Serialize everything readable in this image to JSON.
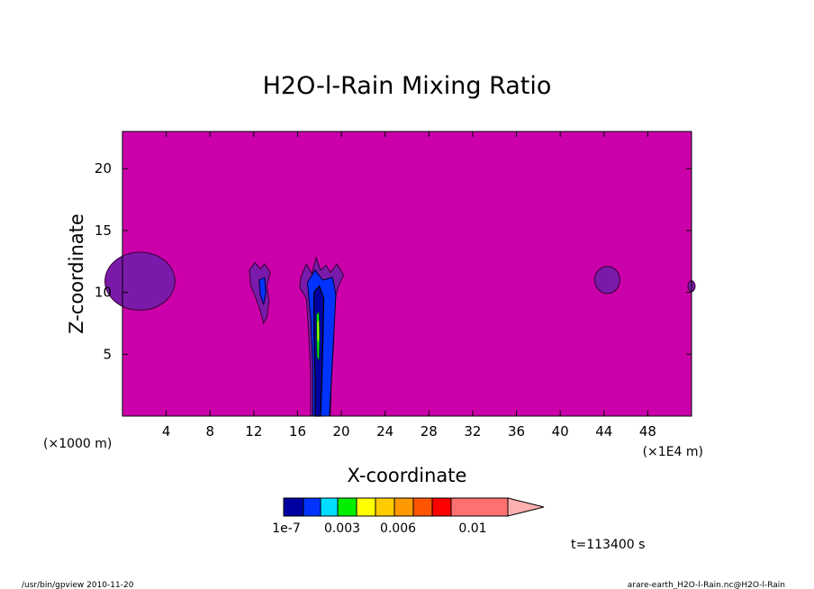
{
  "chart_data": {
    "type": "heatmap",
    "title": "H2O-l-Rain Mixing Ratio",
    "xlabel": "X-coordinate",
    "ylabel": "Z-coordinate",
    "x_unit_label": "(×1000 m)",
    "x_scale_label": "(×1E4 m)",
    "xlim": [
      0,
      52
    ],
    "ylim": [
      0,
      23
    ],
    "xticks": [
      4,
      8,
      12,
      16,
      20,
      24,
      28,
      32,
      36,
      40,
      44,
      48
    ],
    "yticks": [
      5,
      10,
      15,
      20
    ],
    "background_level_color": "#cc00aa",
    "colorbar": {
      "colors": [
        "#0000a0",
        "#0033ff",
        "#00ddff",
        "#00ee00",
        "#ffff00",
        "#ffcc00",
        "#ff9900",
        "#ff5500",
        "#ff0000",
        "#ff7070",
        "#ffb0b0"
      ],
      "tick_labels": [
        "1e-7",
        "0.003",
        "0.006",
        "0.01"
      ]
    },
    "features": [
      {
        "name": "left-edge-patch",
        "x_center": 1.6,
        "z_center": 10.9,
        "level": "lowest"
      },
      {
        "name": "cell-x13",
        "x_center": 12.9,
        "z_center": 10.0,
        "level": "low"
      },
      {
        "name": "main-column-x18",
        "x_center": 18.2,
        "z_center": 6.0,
        "level": "low-to-mid"
      },
      {
        "name": "right-patch",
        "x_center": 44.3,
        "z_center": 11.0,
        "level": "lowest"
      }
    ],
    "time_label": "t=113400 s"
  },
  "footer": {
    "left": "/usr/bin/gpview   2010-11-20",
    "right": "arare-earth_H2O-l-Rain.nc@H2O-l-Rain"
  }
}
